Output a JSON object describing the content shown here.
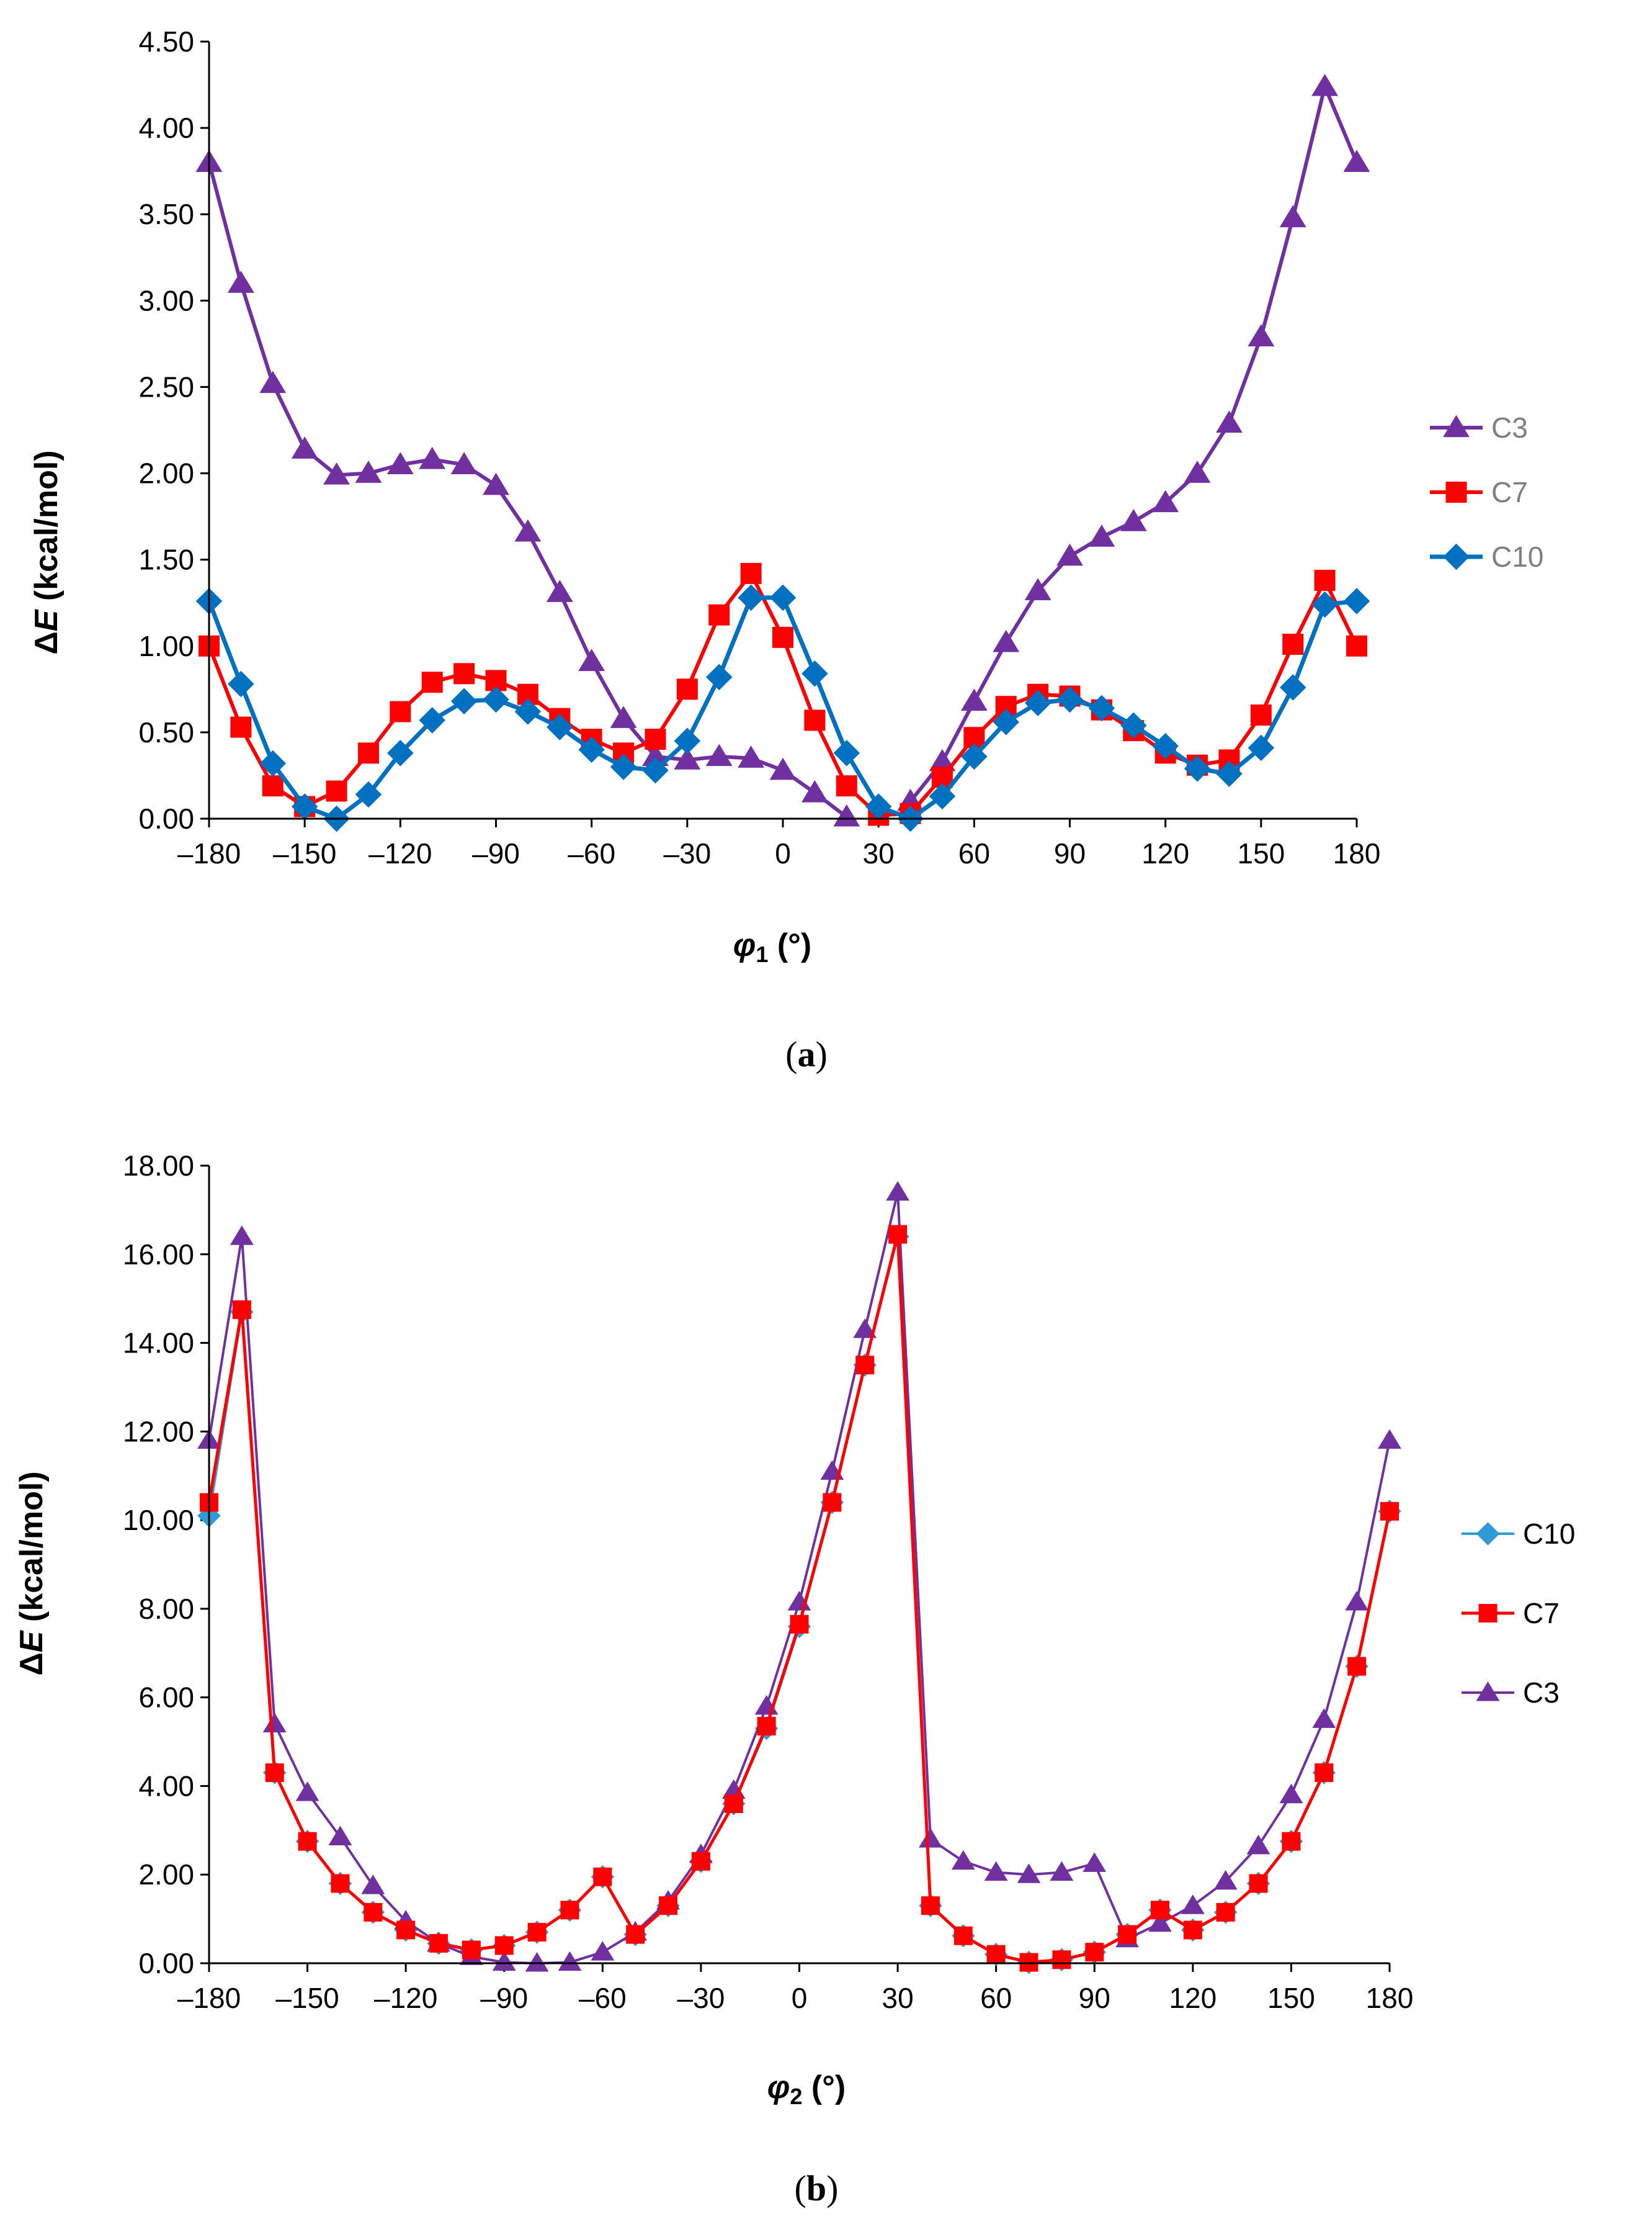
{
  "panels": [
    {
      "id": "a",
      "caption": "(a)",
      "caption_letter": "a",
      "ylabel_delta": "Δ",
      "ylabel_E": "E",
      "ylabel_rest": " (kcal/mol)",
      "xlabel_phi": "φ",
      "xlabel_sub": "1",
      "xlabel_rest": " (°)",
      "legend_order": [
        "C3",
        "C7",
        "C10"
      ],
      "legend_colors": {
        "C3": "#7f7f7f",
        "C7": "#7f7f7f",
        "C10": "#7f7f7f"
      }
    },
    {
      "id": "b",
      "caption": "(b)",
      "caption_letter": "b",
      "ylabel_delta": "Δ",
      "ylabel_E": "E",
      "ylabel_rest": " (kcal/mol)",
      "xlabel_phi": "φ",
      "xlabel_sub": "2",
      "xlabel_rest": " (°)",
      "legend_order": [
        "C10",
        "C7",
        "C3"
      ],
      "legend_colors": {
        "C3": "#000000",
        "C7": "#000000",
        "C10": "#000000"
      }
    }
  ],
  "chart_data": [
    {
      "type": "line",
      "title": "",
      "xlabel": "φ1 (°)",
      "ylabel": "ΔE (kcal/mol)",
      "xlim": [
        -180,
        180
      ],
      "ylim": [
        0,
        4.5
      ],
      "xticks": [
        -180,
        -150,
        -120,
        -90,
        -60,
        -30,
        0,
        30,
        60,
        90,
        120,
        150,
        180
      ],
      "xtick_labels": [
        "–180",
        "–150",
        "–120",
        "–90",
        "–60",
        "–30",
        "0",
        "30",
        "60",
        "90",
        "120",
        "150",
        "180"
      ],
      "yticks": [
        0,
        0.5,
        1,
        1.5,
        2,
        2.5,
        3,
        3.5,
        4,
        4.5
      ],
      "ytick_labels": [
        "0.00",
        "0.50",
        "1.00",
        "1.50",
        "2.00",
        "2.50",
        "3.00",
        "3.50",
        "4.00",
        "4.50"
      ],
      "grid": false,
      "legend": "right",
      "x": [
        -180,
        -170,
        -160,
        -150,
        -140,
        -130,
        -120,
        -110,
        -100,
        -90,
        -80,
        -70,
        -60,
        -50,
        -40,
        -30,
        -20,
        -10,
        0,
        10,
        20,
        30,
        40,
        50,
        60,
        70,
        80,
        90,
        100,
        110,
        120,
        130,
        140,
        150,
        160,
        170,
        180
      ],
      "series": [
        {
          "name": "C3",
          "color": "#7030a0",
          "marker": "triangle",
          "line_width": 6,
          "values": [
            3.8,
            3.1,
            2.52,
            2.14,
            1.99,
            2.0,
            2.05,
            2.08,
            2.05,
            1.93,
            1.66,
            1.31,
            0.91,
            0.58,
            0.36,
            0.34,
            0.36,
            0.35,
            0.28,
            0.15,
            0.01,
            null,
            0.1,
            0.33,
            0.68,
            1.02,
            1.32,
            1.52,
            1.63,
            1.72,
            1.83,
            2.0,
            2.29,
            2.79,
            3.48,
            4.24,
            3.8
          ]
        },
        {
          "name": "C7",
          "color": "#ff0000",
          "marker": "square",
          "line_width": 6,
          "values": [
            1.0,
            0.53,
            0.19,
            0.07,
            0.16,
            0.38,
            0.62,
            0.79,
            0.84,
            0.8,
            0.72,
            0.58,
            0.46,
            0.38,
            0.46,
            0.75,
            1.18,
            1.42,
            1.05,
            0.57,
            0.19,
            0.02,
            0.03,
            0.24,
            0.47,
            0.65,
            0.72,
            0.71,
            0.63,
            0.51,
            0.38,
            0.31,
            0.34,
            0.6,
            1.01,
            1.38,
            1.0
          ]
        },
        {
          "name": "C10",
          "color": "#0070c0",
          "marker": "diamond",
          "line_width": 7,
          "values": [
            1.26,
            0.78,
            0.32,
            0.07,
            0.0,
            0.14,
            0.38,
            0.57,
            0.68,
            0.69,
            0.62,
            0.53,
            0.4,
            0.3,
            0.28,
            0.45,
            0.82,
            1.28,
            1.28,
            0.84,
            0.38,
            0.07,
            0.0,
            0.13,
            0.36,
            0.56,
            0.67,
            0.69,
            0.64,
            0.54,
            0.42,
            0.29,
            0.26,
            0.41,
            0.76,
            1.24,
            1.26
          ]
        }
      ]
    },
    {
      "type": "line",
      "title": "",
      "xlabel": "φ2 (°)",
      "ylabel": "ΔE (kcal/mol)",
      "xlim": [
        -180,
        180
      ],
      "ylim": [
        0,
        18
      ],
      "xticks": [
        -180,
        -150,
        -120,
        -90,
        -60,
        -30,
        0,
        30,
        60,
        90,
        120,
        150,
        180
      ],
      "xtick_labels": [
        "–180",
        "–150",
        "–120",
        "–90",
        "–60",
        "–30",
        "0",
        "30",
        "60",
        "90",
        "120",
        "150",
        "180"
      ],
      "yticks": [
        0,
        2,
        4,
        6,
        8,
        10,
        12,
        14,
        16,
        18
      ],
      "ytick_labels": [
        "0.00",
        "2.00",
        "4.00",
        "6.00",
        "8.00",
        "10.00",
        "12.00",
        "14.00",
        "16.00",
        "18.00"
      ],
      "grid": false,
      "legend": "right",
      "x": [
        -180,
        -170,
        -160,
        -150,
        -140,
        -130,
        -120,
        -110,
        -100,
        -90,
        -80,
        -70,
        -60,
        -50,
        -40,
        -30,
        -20,
        -10,
        0,
        10,
        20,
        30,
        40,
        50,
        60,
        70,
        80,
        90,
        100,
        110,
        120,
        130,
        140,
        150,
        160,
        170,
        180
      ],
      "series": [
        {
          "name": "C10",
          "color": "#2e9bd6",
          "marker": "diamond",
          "line_width": 4,
          "values": [
            10.1,
            14.7,
            4.3,
            2.75,
            1.8,
            1.15,
            0.75,
            0.45,
            0.3,
            0.4,
            0.7,
            1.2,
            1.95,
            0.65,
            1.3,
            2.3,
            3.6,
            5.3,
            7.6,
            10.4,
            13.5,
            16.4,
            1.3,
            0.62,
            0.2,
            0.02,
            0.08,
            0.25,
            0.65,
            1.2,
            0.75,
            1.15,
            1.8,
            2.75,
            4.3,
            6.7,
            10.2
          ]
        },
        {
          "name": "C7",
          "color": "#ff0000",
          "marker": "square",
          "line_width": 5,
          "values": [
            10.4,
            14.75,
            4.3,
            2.75,
            1.8,
            1.15,
            0.75,
            0.45,
            0.3,
            0.4,
            0.7,
            1.2,
            1.95,
            0.65,
            1.3,
            2.3,
            3.6,
            5.35,
            7.65,
            10.4,
            13.5,
            16.45,
            1.3,
            0.62,
            0.2,
            0.02,
            0.08,
            0.25,
            0.65,
            1.2,
            0.75,
            1.15,
            1.8,
            2.75,
            4.3,
            6.7,
            10.2
          ]
        },
        {
          "name": "C3",
          "color": "#7030a0",
          "marker": "triangle",
          "line_width": 4,
          "values": [
            11.8,
            16.4,
            5.4,
            3.85,
            2.85,
            1.75,
            0.95,
            0.45,
            0.15,
            0.02,
            0.0,
            0.02,
            0.25,
            0.7,
            1.4,
            2.45,
            3.9,
            5.8,
            8.15,
            11.1,
            14.3,
            17.4,
            2.8,
            2.3,
            2.05,
            2.0,
            2.05,
            2.25,
            0.55,
            0.9,
            1.3,
            1.85,
            2.65,
            3.8,
            5.5,
            8.15,
            11.8
          ]
        }
      ]
    }
  ]
}
